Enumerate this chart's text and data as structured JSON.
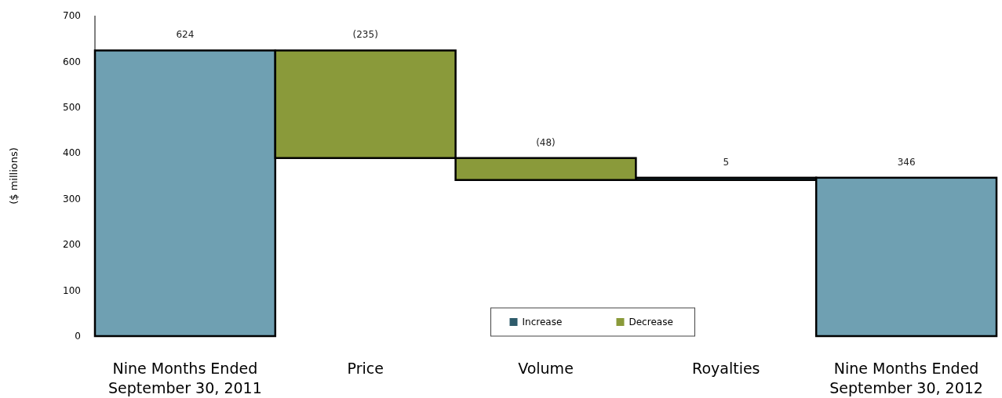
{
  "chart_data": {
    "type": "bar",
    "ylabel": "($ millions)",
    "categories": [
      "Nine Months Ended September 30, 2011",
      "Price",
      "Volume",
      "Royalties",
      "Nine Months Ended September 30, 2012"
    ],
    "series": [
      {
        "name": "Increase",
        "color": "#2e5b6b",
        "colors": [
          "#6fa0b2",
          null,
          null,
          "#2e5b6b",
          "#6fa0b2"
        ],
        "base": [
          0,
          null,
          null,
          341,
          0
        ],
        "values": [
          624,
          null,
          null,
          5,
          346
        ],
        "value_labels": [
          "624",
          null,
          null,
          "5",
          "346"
        ]
      },
      {
        "name": "Decrease",
        "color": "#8a9a3a",
        "base": [
          null,
          624,
          389,
          null,
          null
        ],
        "values": [
          null,
          -235,
          -48,
          null,
          null
        ],
        "value_labels": [
          null,
          "(235)",
          "(48)",
          null,
          null
        ]
      }
    ],
    "ylim": [
      0,
      700
    ],
    "yticks": [
      0,
      100,
      200,
      300,
      400,
      500,
      600,
      700
    ],
    "grid": false,
    "legend": "bottom"
  }
}
